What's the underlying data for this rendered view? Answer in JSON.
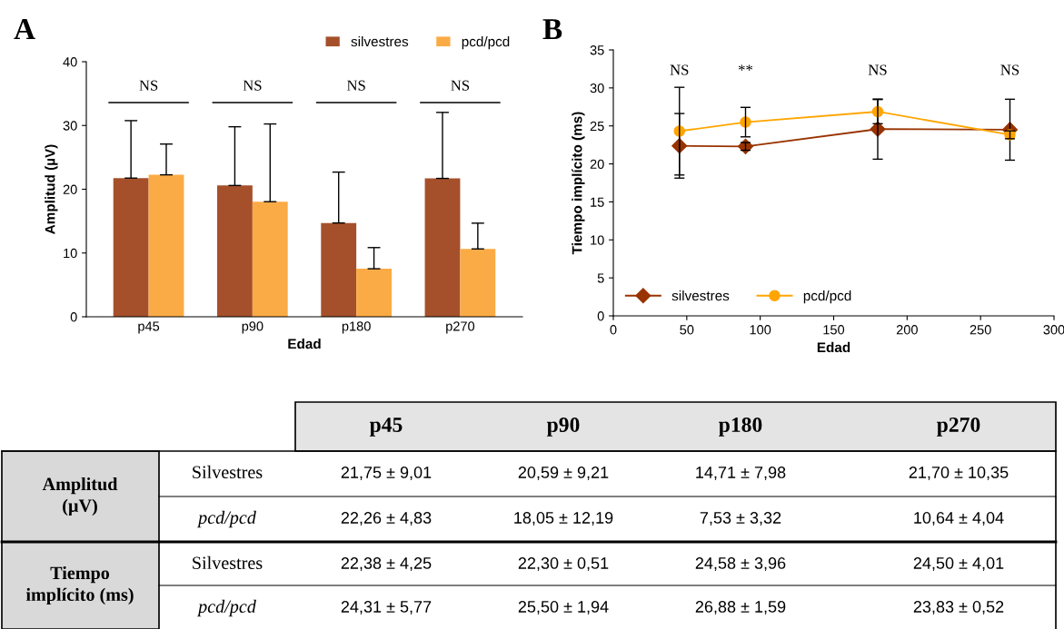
{
  "chart_data": [
    {
      "type": "bar",
      "title": "A",
      "xlabel": "Edad",
      "ylabel": "Amplitud (µV)",
      "categories": [
        "p45",
        "p90",
        "p180",
        "p270"
      ],
      "ylim": [
        0,
        40
      ],
      "yticks": [
        0,
        10,
        20,
        30,
        40
      ],
      "grid": false,
      "legend": "top right",
      "series": [
        {
          "name": "silvestres",
          "color": "#a5502b",
          "values": [
            21.75,
            20.59,
            14.71,
            21.7
          ],
          "errors": [
            [
              21.75,
              30.76
            ],
            [
              20.59,
              29.8
            ],
            [
              14.71,
              22.69
            ],
            [
              21.7,
              32.05
            ]
          ]
        },
        {
          "name": "pcd/pcd",
          "color": "#fbab45",
          "values": [
            22.26,
            18.05,
            7.53,
            10.64
          ],
          "errors": [
            [
              22.26,
              27.09
            ],
            [
              18.05,
              30.24
            ],
            [
              7.53,
              10.85
            ],
            [
              10.64,
              14.68
            ]
          ]
        }
      ],
      "annotations": [
        "NS",
        "NS",
        "NS",
        "NS"
      ]
    },
    {
      "type": "line",
      "title": "B",
      "xlabel": "Edad",
      "ylabel": "Tiempo implícito (ms)",
      "x": [
        45,
        90,
        180,
        270
      ],
      "xlim": [
        0,
        300
      ],
      "xticks": [
        0,
        50,
        100,
        150,
        200,
        250,
        300
      ],
      "ylim": [
        0,
        35
      ],
      "yticks": [
        0,
        5,
        10,
        15,
        20,
        25,
        30,
        35
      ],
      "grid": false,
      "legend": "bottom left",
      "series": [
        {
          "name": "silvestres",
          "color": "#993300",
          "marker": "diamond",
          "values": [
            22.38,
            22.3,
            24.58,
            24.5
          ],
          "errors": [
            4.25,
            0.51,
            3.96,
            4.01
          ]
        },
        {
          "name": "pcd/pcd",
          "color": "#ffa500",
          "marker": "circle",
          "values": [
            24.31,
            25.5,
            26.88,
            23.83
          ],
          "errors": [
            5.77,
            1.94,
            1.59,
            0.52
          ]
        }
      ],
      "annotations": [
        "NS",
        "**",
        "NS",
        "NS"
      ]
    },
    {
      "type": "other",
      "annotations": [
        "p45",
        "p90",
        "p180",
        "p270",
        "Amplitud\n(µV)",
        "Silvestres",
        "21,75 ± 9,01",
        "20,59 ± 9,21",
        "14,71 ± 7,98",
        "21,70 ± 10,35",
        "pcd/pcd",
        "22,26 ± 4,83",
        "18,05 ± 12,19",
        "7,53 ± 3,32",
        "10,64 ± 4,04",
        "Tiempo\nimplícito (ms)",
        "Silvestres",
        "22,38 ± 4,25",
        "22,30 ± 0,51",
        "24,58 ± 3,96",
        "24,50 ± 4,01",
        "pcd/pcd",
        "24,31 ± 5,77",
        "25,50 ± 1,94",
        "26,88 ± 1,59",
        "23,83 ± 0,52"
      ]
    }
  ]
}
